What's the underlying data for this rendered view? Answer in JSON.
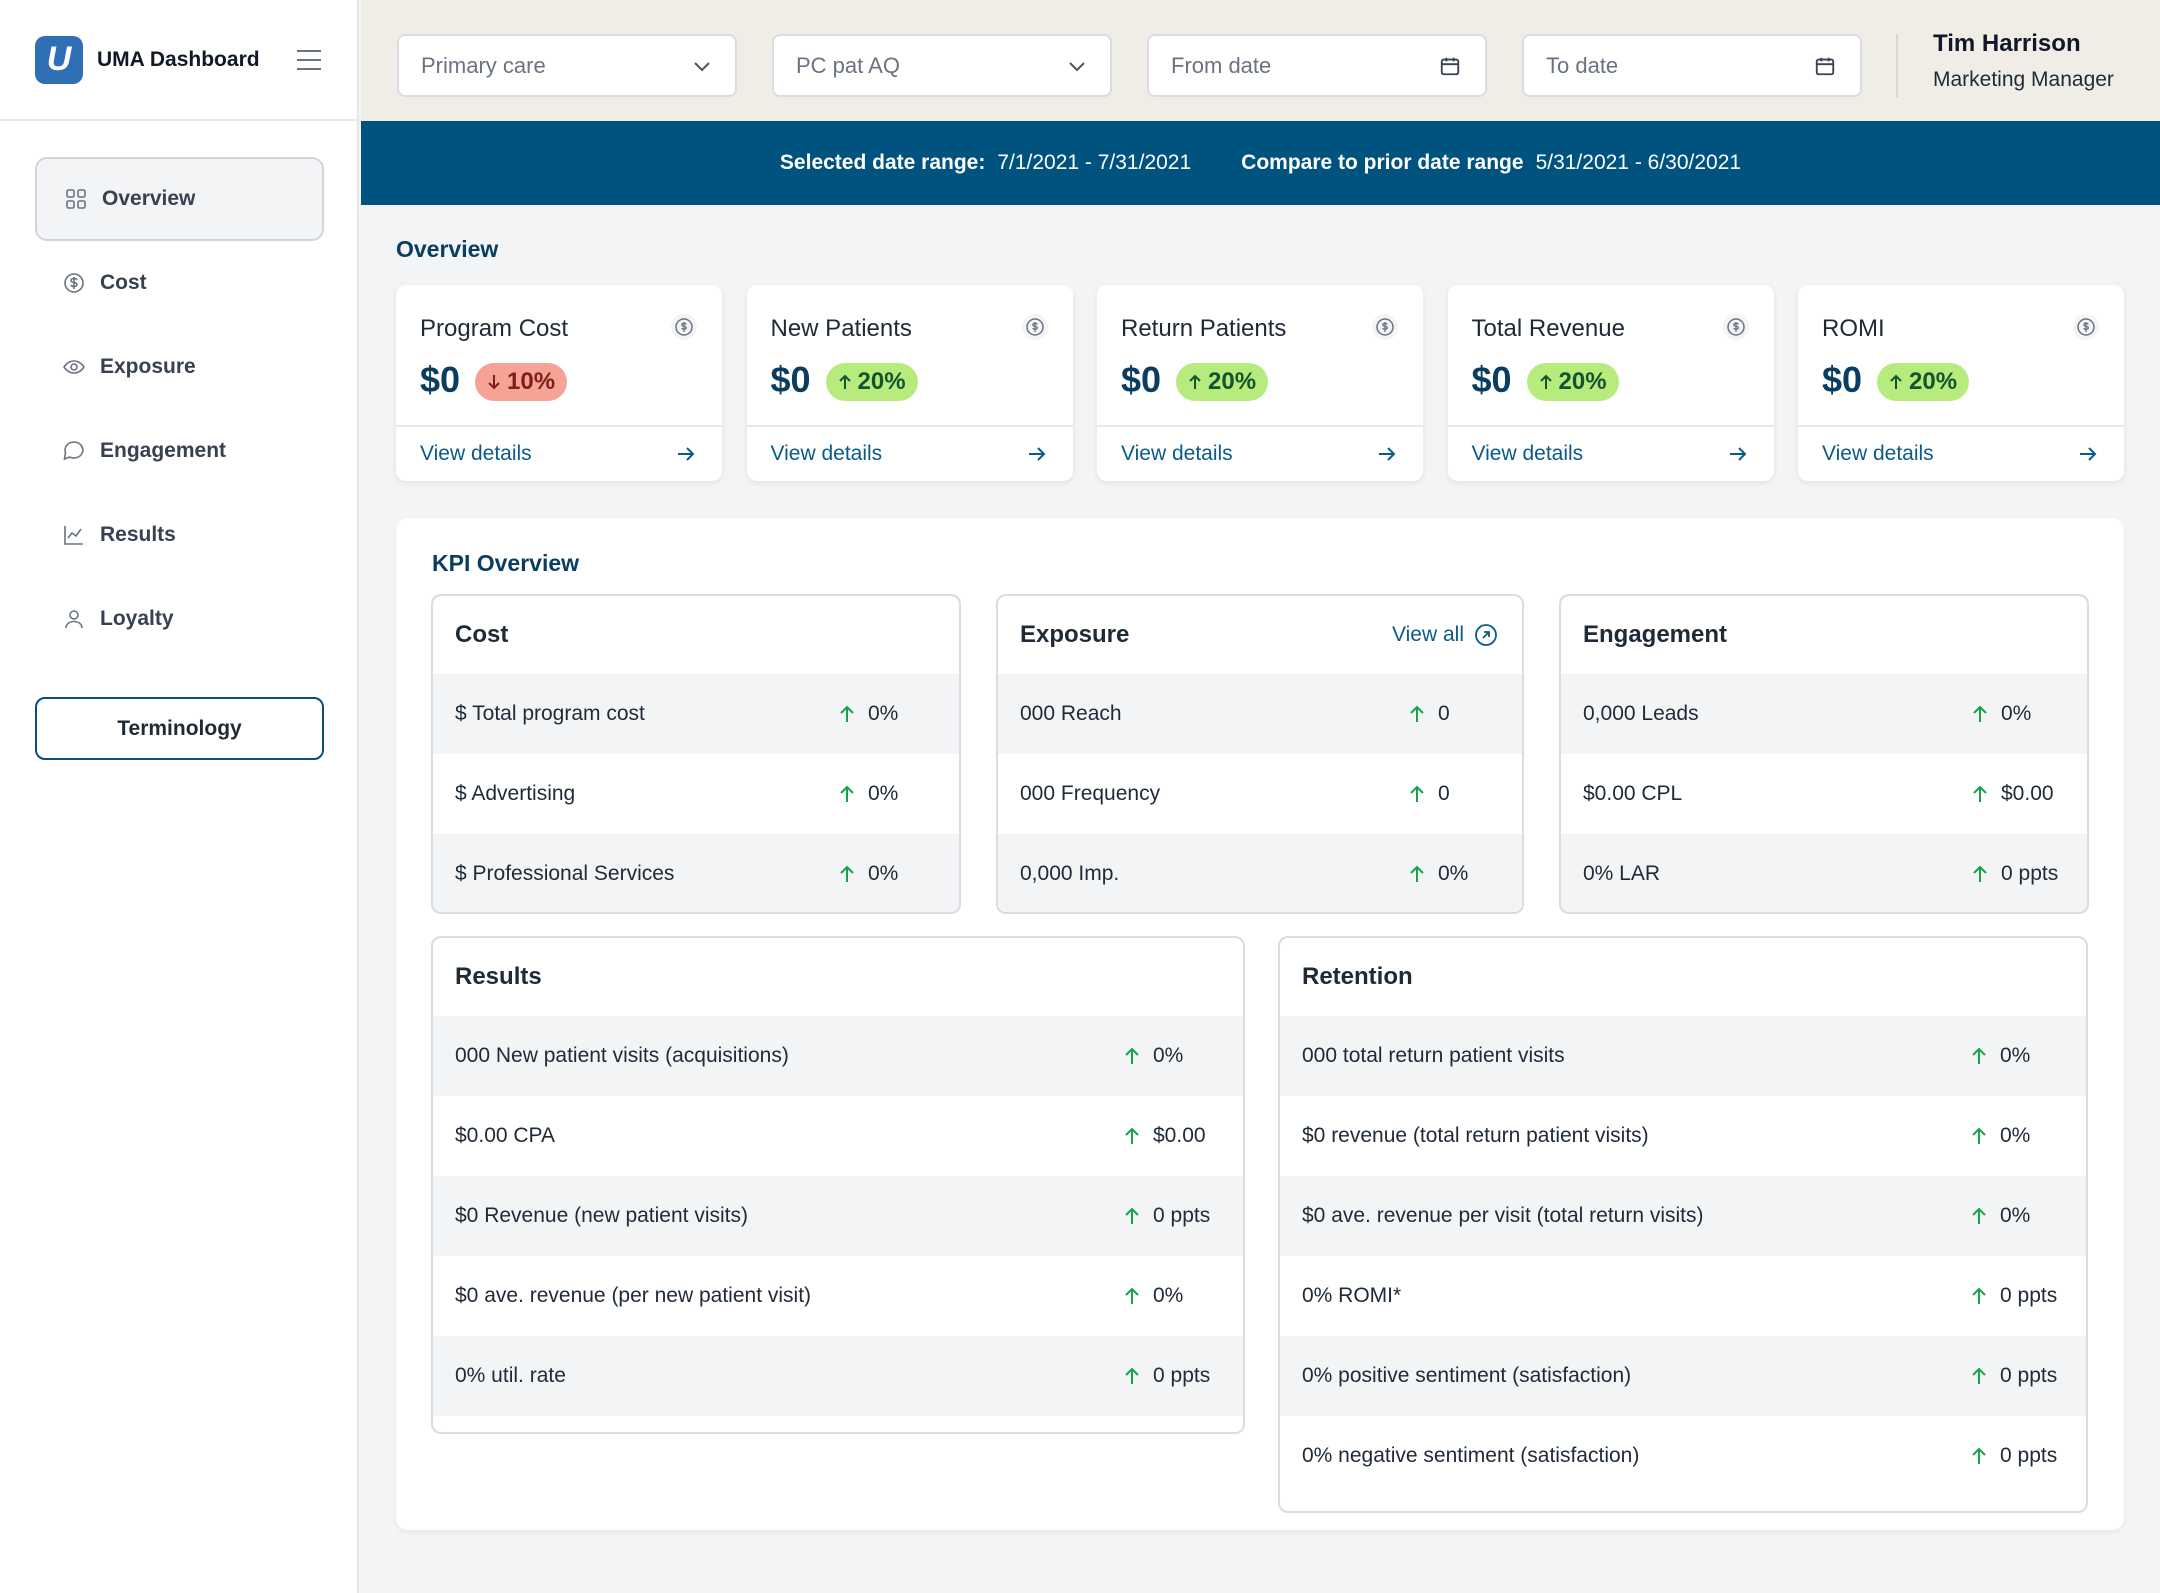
{
  "brand": {
    "logo_letter": "U",
    "name": "UMA Dashboard"
  },
  "sidebar": {
    "items": [
      {
        "label": "Overview",
        "icon": "grid-icon",
        "active": true
      },
      {
        "label": "Cost",
        "icon": "dollar-circle-icon"
      },
      {
        "label": "Exposure",
        "icon": "eye-icon"
      },
      {
        "label": "Engagement",
        "icon": "chat-bubble-icon"
      },
      {
        "label": "Results",
        "icon": "chart-line-icon"
      },
      {
        "label": "Loyalty",
        "icon": "user-icon"
      }
    ],
    "terminology_label": "Terminology"
  },
  "filters": {
    "service_line": "Primary care",
    "campaign": "PC pat AQ",
    "from_date_placeholder": "From date",
    "to_date_placeholder": "To date"
  },
  "user": {
    "name": "Tim Harrison",
    "role": "Marketing Manager"
  },
  "banner": {
    "selected_label": "Selected date range:",
    "selected_value": "7/1/2021 - 7/31/2021",
    "compare_label": "Compare to prior date range",
    "compare_value": "5/31/2021 - 6/30/2021"
  },
  "overview": {
    "title": "Overview",
    "cards": [
      {
        "label": "Program Cost",
        "value": "$0",
        "change": "10%",
        "direction": "down",
        "link": "View details"
      },
      {
        "label": "New Patients",
        "value": "$0",
        "change": "20%",
        "direction": "up",
        "link": "View details"
      },
      {
        "label": "Return Patients",
        "value": "$0",
        "change": "20%",
        "direction": "up",
        "link": "View details"
      },
      {
        "label": "Total Revenue",
        "value": "$0",
        "change": "20%",
        "direction": "up",
        "link": "View details"
      },
      {
        "label": "ROMI",
        "value": "$0",
        "change": "20%",
        "direction": "up",
        "link": "View details"
      }
    ]
  },
  "kpi": {
    "title": "KPI Overview",
    "cost": {
      "title": "Cost",
      "rows": [
        {
          "label": "$ Total program cost",
          "value": "0%"
        },
        {
          "label": "$ Advertising",
          "value": "0%"
        },
        {
          "label": "$ Professional Services",
          "value": "0%"
        }
      ]
    },
    "exposure": {
      "title": "Exposure",
      "view_all": "View all",
      "rows": [
        {
          "label": "000 Reach",
          "value": "0"
        },
        {
          "label": "000 Frequency",
          "value": "0"
        },
        {
          "label": "0,000 Imp.",
          "value": "0%"
        }
      ]
    },
    "engagement": {
      "title": "Engagement",
      "rows": [
        {
          "label": "0,000 Leads",
          "value": "0%"
        },
        {
          "label": "$0.00 CPL",
          "value": "$0.00"
        },
        {
          "label": "0% LAR",
          "value": "0 ppts"
        }
      ]
    },
    "results": {
      "title": "Results",
      "rows": [
        {
          "label": "000 New patient visits (acquisitions)",
          "value": "0%"
        },
        {
          "label": "$0.00 CPA",
          "value": "$0.00"
        },
        {
          "label": "$0 Revenue (new patient visits)",
          "value": "0 ppts"
        },
        {
          "label": "$0 ave. revenue (per new patient visit)",
          "value": "0%"
        },
        {
          "label": "0% util. rate",
          "value": "0 ppts"
        }
      ]
    },
    "retention": {
      "title": "Retention",
      "rows": [
        {
          "label": "000 total return patient visits",
          "value": "0%"
        },
        {
          "label": "$0 revenue (total return patient visits)",
          "value": "0%"
        },
        {
          "label": "$0 ave. revenue per visit (total return visits)",
          "value": "0%"
        },
        {
          "label": "0% ROMI*",
          "value": "0 ppts"
        },
        {
          "label": "0% positive sentiment (satisfaction)",
          "value": "0 ppts"
        },
        {
          "label": "0% negative sentiment (satisfaction)",
          "value": "0 ppts"
        }
      ]
    }
  },
  "colors": {
    "brand_blue": "#00527f",
    "up_badge": "#b7eb7e",
    "down_badge": "#f4a394",
    "up_arrow": "#16a34a"
  }
}
